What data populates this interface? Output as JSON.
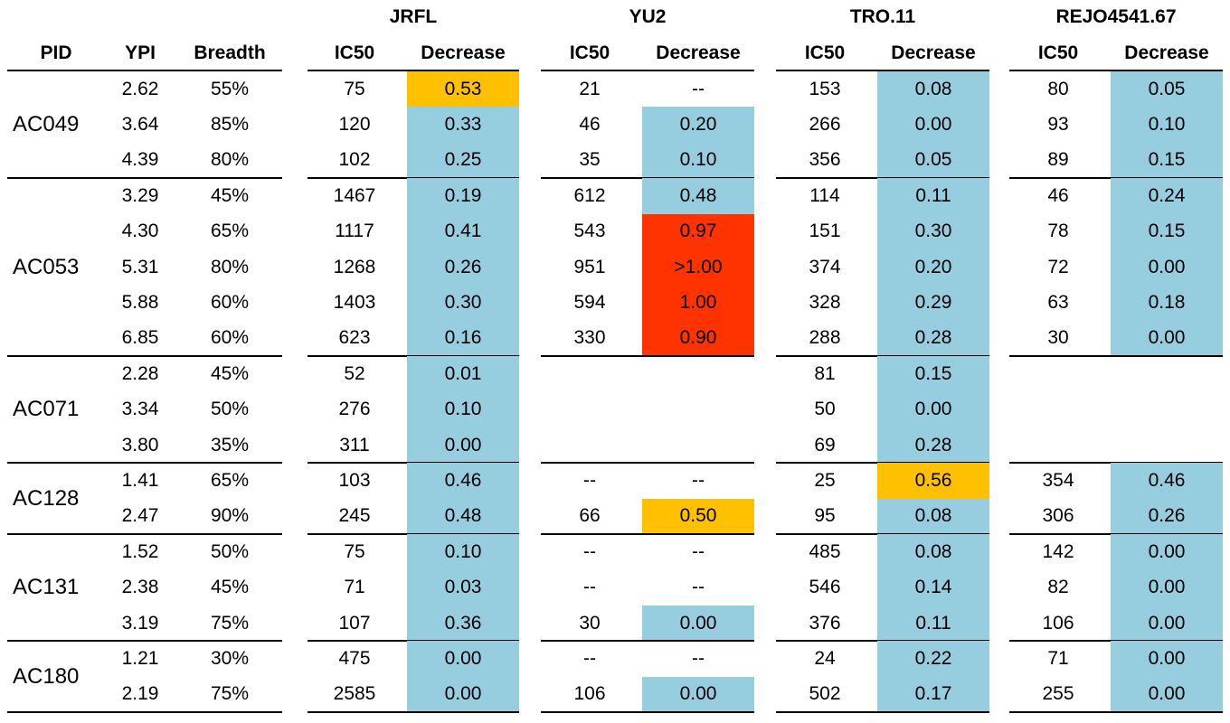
{
  "colors": {
    "blue": "#96cddf",
    "orange": "#ffc000",
    "red": "#ff3300"
  },
  "chart_data": {
    "type": "table",
    "group_headers": [
      "JRFL",
      "YU2",
      "TRO.11",
      "REJO4541.67"
    ],
    "columns": [
      "PID",
      "YPI",
      "Breadth",
      "IC50",
      "Decrease",
      "IC50",
      "Decrease",
      "IC50",
      "Decrease",
      "IC50",
      "Decrease"
    ],
    "groups": [
      {
        "pid": "AC049",
        "rows": [
          {
            "ypi": "2.62",
            "breadth": "55%",
            "cells": [
              [
                "75",
                "0.53",
                "orange"
              ],
              [
                "21",
                "--",
                ""
              ],
              [
                "153",
                "0.08",
                "blue"
              ],
              [
                "80",
                "0.05",
                "blue"
              ]
            ]
          },
          {
            "ypi": "3.64",
            "breadth": "85%",
            "cells": [
              [
                "120",
                "0.33",
                "blue"
              ],
              [
                "46",
                "0.20",
                "blue"
              ],
              [
                "266",
                "0.00",
                "blue"
              ],
              [
                "93",
                "0.10",
                "blue"
              ]
            ]
          },
          {
            "ypi": "4.39",
            "breadth": "80%",
            "cells": [
              [
                "102",
                "0.25",
                "blue"
              ],
              [
                "35",
                "0.10",
                "blue"
              ],
              [
                "356",
                "0.05",
                "blue"
              ],
              [
                "89",
                "0.15",
                "blue"
              ]
            ]
          }
        ]
      },
      {
        "pid": "AC053",
        "rows": [
          {
            "ypi": "3.29",
            "breadth": "45%",
            "cells": [
              [
                "1467",
                "0.19",
                "blue"
              ],
              [
                "612",
                "0.48",
                "blue"
              ],
              [
                "114",
                "0.11",
                "blue"
              ],
              [
                "46",
                "0.24",
                "blue"
              ]
            ]
          },
          {
            "ypi": "4.30",
            "breadth": "65%",
            "cells": [
              [
                "1117",
                "0.41",
                "blue"
              ],
              [
                "543",
                "0.97",
                "red"
              ],
              [
                "151",
                "0.30",
                "blue"
              ],
              [
                "78",
                "0.15",
                "blue"
              ]
            ]
          },
          {
            "ypi": "5.31",
            "breadth": "80%",
            "cells": [
              [
                "1268",
                "0.26",
                "blue"
              ],
              [
                "951",
                ">1.00",
                "red"
              ],
              [
                "374",
                "0.20",
                "blue"
              ],
              [
                "72",
                "0.00",
                "blue"
              ]
            ]
          },
          {
            "ypi": "5.88",
            "breadth": "60%",
            "cells": [
              [
                "1403",
                "0.30",
                "blue"
              ],
              [
                "594",
                "1.00",
                "red"
              ],
              [
                "328",
                "0.29",
                "blue"
              ],
              [
                "63",
                "0.18",
                "blue"
              ]
            ]
          },
          {
            "ypi": "6.85",
            "breadth": "60%",
            "cells": [
              [
                "623",
                "0.16",
                "blue"
              ],
              [
                "330",
                "0.90",
                "red"
              ],
              [
                "288",
                "0.28",
                "blue"
              ],
              [
                "30",
                "0.00",
                "blue"
              ]
            ]
          }
        ]
      },
      {
        "pid": "AC071",
        "rows": [
          {
            "ypi": "2.28",
            "breadth": "45%",
            "cells": [
              [
                "52",
                "0.01",
                "blue"
              ],
              [
                "",
                "",
                ""
              ],
              [
                "81",
                "0.15",
                "blue"
              ],
              [
                "",
                "",
                ""
              ]
            ]
          },
          {
            "ypi": "3.34",
            "breadth": "50%",
            "cells": [
              [
                "276",
                "0.10",
                "blue"
              ],
              [
                "",
                "",
                ""
              ],
              [
                "50",
                "0.00",
                "blue"
              ],
              [
                "",
                "",
                ""
              ]
            ]
          },
          {
            "ypi": "3.80",
            "breadth": "35%",
            "cells": [
              [
                "311",
                "0.00",
                "blue"
              ],
              [
                "",
                "",
                ""
              ],
              [
                "69",
                "0.28",
                "blue"
              ],
              [
                "",
                "",
                ""
              ]
            ]
          }
        ]
      },
      {
        "pid": "AC128",
        "rows": [
          {
            "ypi": "1.41",
            "breadth": "65%",
            "cells": [
              [
                "103",
                "0.46",
                "blue"
              ],
              [
                "--",
                "--",
                ""
              ],
              [
                "25",
                "0.56",
                "orange"
              ],
              [
                "354",
                "0.46",
                "blue"
              ]
            ]
          },
          {
            "ypi": "2.47",
            "breadth": "90%",
            "cells": [
              [
                "245",
                "0.48",
                "blue"
              ],
              [
                "66",
                "0.50",
                "orange"
              ],
              [
                "95",
                "0.08",
                "blue"
              ],
              [
                "306",
                "0.26",
                "blue"
              ]
            ]
          }
        ]
      },
      {
        "pid": "AC131",
        "rows": [
          {
            "ypi": "1.52",
            "breadth": "50%",
            "cells": [
              [
                "75",
                "0.10",
                "blue"
              ],
              [
                "--",
                "--",
                ""
              ],
              [
                "485",
                "0.08",
                "blue"
              ],
              [
                "142",
                "0.00",
                "blue"
              ]
            ]
          },
          {
            "ypi": "2.38",
            "breadth": "45%",
            "cells": [
              [
                "71",
                "0.03",
                "blue"
              ],
              [
                "--",
                "--",
                ""
              ],
              [
                "546",
                "0.14",
                "blue"
              ],
              [
                "82",
                "0.00",
                "blue"
              ]
            ]
          },
          {
            "ypi": "3.19",
            "breadth": "75%",
            "cells": [
              [
                "107",
                "0.36",
                "blue"
              ],
              [
                "30",
                "0.00",
                "blue"
              ],
              [
                "376",
                "0.11",
                "blue"
              ],
              [
                "106",
                "0.00",
                "blue"
              ]
            ]
          }
        ]
      },
      {
        "pid": "AC180",
        "rows": [
          {
            "ypi": "1.21",
            "breadth": "30%",
            "cells": [
              [
                "475",
                "0.00",
                "blue"
              ],
              [
                "--",
                "--",
                ""
              ],
              [
                "24",
                "0.22",
                "blue"
              ],
              [
                "71",
                "0.00",
                "blue"
              ]
            ]
          },
          {
            "ypi": "2.19",
            "breadth": "75%",
            "cells": [
              [
                "2585",
                "0.00",
                "blue"
              ],
              [
                "106",
                "0.00",
                "blue"
              ],
              [
                "502",
                "0.17",
                "blue"
              ],
              [
                "255",
                "0.00",
                "blue"
              ]
            ]
          }
        ]
      }
    ]
  }
}
